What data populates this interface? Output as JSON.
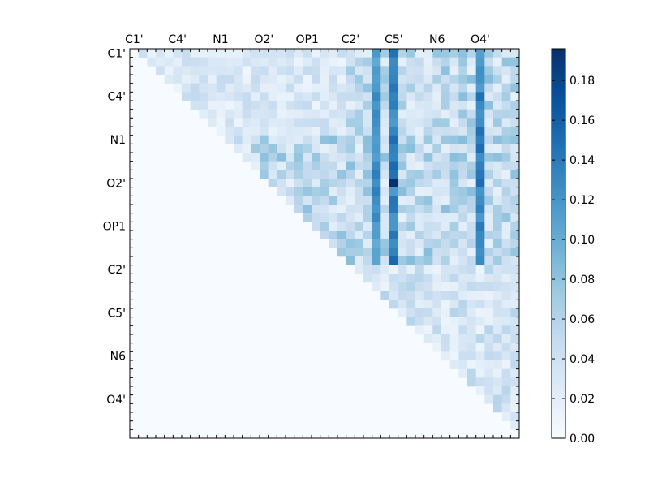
{
  "chart_data": {
    "type": "heatmap",
    "title": "",
    "xlabel": "",
    "ylabel": "",
    "n": 45,
    "x_tick_labels": [
      "C1'",
      "C4'",
      "N1",
      "O2'",
      "OP1",
      "C2'",
      "C5'",
      "N6",
      "O4'"
    ],
    "y_tick_labels": [
      "C1'",
      "C4'",
      "N1",
      "O2'",
      "OP1",
      "C2'",
      "C5'",
      "N6",
      "O4'"
    ],
    "labeled_tick_indices": [
      0,
      5,
      10,
      15,
      20,
      25,
      30,
      35,
      40
    ],
    "colorbar": {
      "range": [
        0.0,
        0.196
      ],
      "ticks": [
        0.0,
        0.02,
        0.04,
        0.06,
        0.08,
        0.1,
        0.12,
        0.14,
        0.16,
        0.18
      ],
      "tick_labels": [
        "0.00",
        "0.02",
        "0.04",
        "0.06",
        "0.08",
        "0.10",
        "0.12",
        "0.14",
        "0.16",
        "0.18"
      ],
      "colormap": "Blues"
    },
    "hot_columns": [
      {
        "index": 28,
        "value": 0.12
      },
      {
        "index": 30,
        "value": 0.135
      },
      {
        "index": 40,
        "value": 0.13
      }
    ],
    "peak_cells": [
      {
        "row": 15,
        "col": 30,
        "value": 0.196
      },
      {
        "row": 15,
        "col": 40,
        "value": 0.15
      },
      {
        "row": 11,
        "col": 40,
        "value": 0.15
      }
    ],
    "grid": false,
    "triangle": "upper"
  },
  "colors": {
    "cmap_stops": [
      "#f7fbff",
      "#deebf7",
      "#c6dbef",
      "#9ecae1",
      "#6baed6",
      "#4292c6",
      "#2171b5",
      "#08519c",
      "#08306b"
    ]
  }
}
